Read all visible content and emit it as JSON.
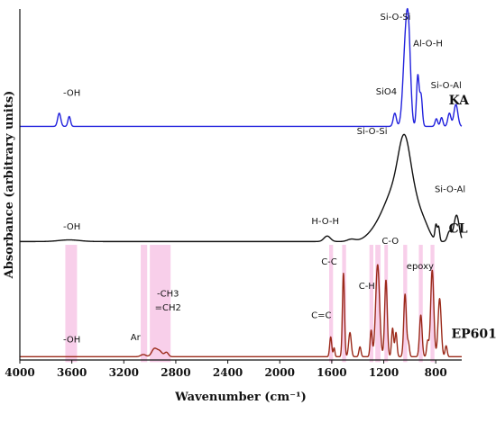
{
  "chart_data": {
    "type": "line",
    "title": "",
    "xlabel": "Wavenumber (cm⁻¹)",
    "ylabel": "Absorbance (arbitrary units)",
    "xlim": [
      4000,
      600
    ],
    "x_reversed": true,
    "ylim": [
      0,
      3.2
    ],
    "grid": false,
    "xticks": [
      4000,
      3600,
      3200,
      2800,
      2400,
      2000,
      1600,
      1200,
      800
    ],
    "tick_labels": [
      "4000",
      "3600",
      "3200",
      "2800",
      "2400",
      "2000",
      "1600",
      "1200",
      "800"
    ],
    "colors": {
      "KA": "#2222dd",
      "CL": "#111111",
      "EP601": "#9b2a1a",
      "highlight": "#f5bfe3"
    },
    "series": [
      {
        "name": "KA",
        "label_x": 700,
        "label_y": 2.33,
        "baseline": 2.13,
        "peaks": [
          [
            3697,
            0.12,
            12
          ],
          [
            3620,
            0.09,
            10
          ],
          [
            1115,
            0.12,
            12
          ],
          [
            1032,
            0.72,
            20
          ],
          [
            1008,
            0.62,
            16
          ],
          [
            938,
            0.46,
            10
          ],
          [
            913,
            0.28,
            10
          ],
          [
            795,
            0.07,
            10
          ],
          [
            755,
            0.08,
            10
          ],
          [
            695,
            0.12,
            12
          ],
          [
            645,
            0.2,
            15
          ]
        ],
        "annotations": [
          {
            "text": "-OH",
            "x": 3600,
            "y": 2.41
          },
          {
            "text": "SiO4",
            "x": 1180,
            "y": 2.42
          },
          {
            "text": "Si-O-Si",
            "x": 1110,
            "y": 3.1
          },
          {
            "text": "Al-O-H",
            "x": 860,
            "y": 2.86
          },
          {
            "text": "Si-O-Al",
            "x": 720,
            "y": 2.48
          }
        ]
      },
      {
        "name": "CL",
        "label_x": 700,
        "label_y": 1.16,
        "baseline": 1.08,
        "peaks": [
          [
            3620,
            0.015,
            80
          ],
          [
            1635,
            0.05,
            25
          ],
          [
            1450,
            0.02,
            30
          ],
          [
            1230,
            0.12,
            80
          ],
          [
            1100,
            0.45,
            80
          ],
          [
            1040,
            0.55,
            45
          ],
          [
            960,
            0.28,
            50
          ],
          [
            880,
            0.1,
            40
          ],
          [
            798,
            0.14,
            8
          ],
          [
            778,
            0.13,
            8
          ],
          [
            695,
            0.09,
            15
          ],
          [
            640,
            0.24,
            20
          ]
        ],
        "annotations": [
          {
            "text": "-OH",
            "x": 3600,
            "y": 1.19
          },
          {
            "text": "H-O-H",
            "x": 1650,
            "y": 1.24
          },
          {
            "text": "Si-O-Si",
            "x": 1290,
            "y": 2.06
          },
          {
            "text": "Si-O-Al",
            "x": 690,
            "y": 1.53
          }
        ]
      },
      {
        "name": "EP601",
        "label_x": 680,
        "label_y": 0.2,
        "baseline": 0.03,
        "peaks": [
          [
            3050,
            0.02,
            20
          ],
          [
            2966,
            0.07,
            20
          ],
          [
            2925,
            0.05,
            20
          ],
          [
            2872,
            0.04,
            15
          ],
          [
            1608,
            0.18,
            8
          ],
          [
            1582,
            0.08,
            6
          ],
          [
            1510,
            0.76,
            8
          ],
          [
            1460,
            0.22,
            10
          ],
          [
            1383,
            0.09,
            8
          ],
          [
            1297,
            0.24,
            8
          ],
          [
            1247,
            0.84,
            15
          ],
          [
            1183,
            0.7,
            10
          ],
          [
            1132,
            0.26,
            8
          ],
          [
            1106,
            0.22,
            8
          ],
          [
            1036,
            0.57,
            10
          ],
          [
            1010,
            0.12,
            8
          ],
          [
            915,
            0.38,
            10
          ],
          [
            862,
            0.14,
            8
          ],
          [
            827,
            0.79,
            12
          ],
          [
            770,
            0.53,
            12
          ],
          [
            720,
            0.1,
            8
          ]
        ],
        "highlights": [
          [
            3650,
            3560
          ],
          [
            3070,
            3020
          ],
          [
            3000,
            2840
          ],
          [
            1620,
            1590
          ],
          [
            1520,
            1490
          ],
          [
            1310,
            1280
          ],
          [
            1265,
            1225
          ],
          [
            1195,
            1168
          ],
          [
            1050,
            1020
          ],
          [
            930,
            900
          ],
          [
            840,
            810
          ]
        ],
        "annotations": [
          {
            "text": "-OH",
            "x": 3600,
            "y": 0.16
          },
          {
            "text": "Ar",
            "x": 3110,
            "y": 0.18
          },
          {
            "text": "-CH3",
            "x": 2860,
            "y": 0.58
          },
          {
            "text": "=CH2",
            "x": 2860,
            "y": 0.45
          },
          {
            "text": "C=C",
            "x": 1680,
            "y": 0.38
          },
          {
            "text": "C-C",
            "x": 1620,
            "y": 0.87
          },
          {
            "text": "C-H",
            "x": 1330,
            "y": 0.65
          },
          {
            "text": "C-O",
            "x": 1150,
            "y": 1.06
          },
          {
            "text": "epoxy",
            "x": 920,
            "y": 0.83
          }
        ]
      }
    ]
  }
}
